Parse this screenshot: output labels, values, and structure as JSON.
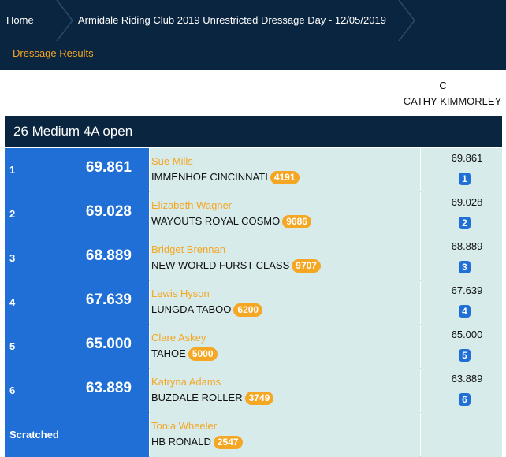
{
  "breadcrumb": {
    "home": "Home",
    "event": "Armidale Riding Club 2019 Unrestricted Dressage Day - 12/05/2019"
  },
  "subnav": {
    "label": "Dressage Results"
  },
  "judge": {
    "position": "C",
    "name": "CATHY KIMMORLEY"
  },
  "class_title": "26 Medium 4A open",
  "results": [
    {
      "rank": "1",
      "score": "69.861",
      "rider": "Sue Mills",
      "horse": "IMMENHOF CINCINNATI",
      "horse_no": "4191",
      "judge_score": "69.861",
      "judge_place": "1"
    },
    {
      "rank": "2",
      "score": "69.028",
      "rider": "Elizabeth Wagner",
      "horse": "WAYOUTS ROYAL COSMO",
      "horse_no": "9686",
      "judge_score": "69.028",
      "judge_place": "2"
    },
    {
      "rank": "3",
      "score": "68.889",
      "rider": "Bridget Brennan",
      "horse": "NEW WORLD FURST CLASS",
      "horse_no": "9707",
      "judge_score": "68.889",
      "judge_place": "3"
    },
    {
      "rank": "4",
      "score": "67.639",
      "rider": "Lewis Hyson",
      "horse": "LUNGDA TABOO",
      "horse_no": "6200",
      "judge_score": "67.639",
      "judge_place": "4"
    },
    {
      "rank": "5",
      "score": "65.000",
      "rider": "Clare Askey",
      "horse": "TAHOE",
      "horse_no": "5000",
      "judge_score": "65.000",
      "judge_place": "5"
    },
    {
      "rank": "6",
      "score": "63.889",
      "rider": "Katryna Adams",
      "horse": "BUZDALE ROLLER",
      "horse_no": "3749",
      "judge_score": "63.889",
      "judge_place": "6"
    }
  ],
  "scratched": {
    "label": "Scratched",
    "rider": "Tonia Wheeler",
    "horse": "HB RONALD",
    "horse_no": "2547"
  },
  "colors": {
    "nav": "#0a2540",
    "accent": "#f5a623",
    "blue": "#1f6fd6",
    "row_bg": "#d6ebea"
  }
}
